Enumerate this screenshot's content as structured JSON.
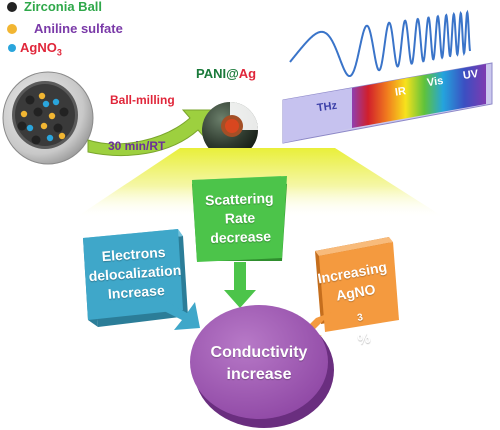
{
  "legend": {
    "items": [
      {
        "label": "Zirconia Ball",
        "color": "#2fa84a",
        "marker": "#222222"
      },
      {
        "label": "Aniline sulfate",
        "color": "#7a3aa8",
        "marker": "#f2b632"
      },
      {
        "label": "AgNO",
        "sub": "3",
        "color": "#e0263a",
        "marker": "#2aa5dc"
      }
    ]
  },
  "process": {
    "step_label": "Ball-milling",
    "condition_label": "30 min/RT",
    "product": {
      "part1": "PANI",
      "part2": "@",
      "part3": "Ag"
    }
  },
  "spectrum": {
    "bands": [
      "THz",
      "IR",
      "Vis",
      "UV"
    ]
  },
  "boxes": {
    "scattering": {
      "line1": "Scattering Rate",
      "line2": "decrease"
    },
    "electrons": {
      "line1": "Electrons",
      "line2": "delocalization",
      "line3": "Increase"
    },
    "agno3": {
      "line1": "Increasing",
      "line2": "AgNO",
      "sub": "3",
      "suffix": "%"
    }
  },
  "result": {
    "line1": "Conductivity",
    "line2": "increase"
  },
  "colors": {
    "teal_box": "#3fa7c9",
    "green_box": "#4cc44a",
    "orange_box": "#f49a3f",
    "purple_circle": "#a15bb5",
    "arrow_green": "#93c83e",
    "platform": "#eef26a"
  }
}
